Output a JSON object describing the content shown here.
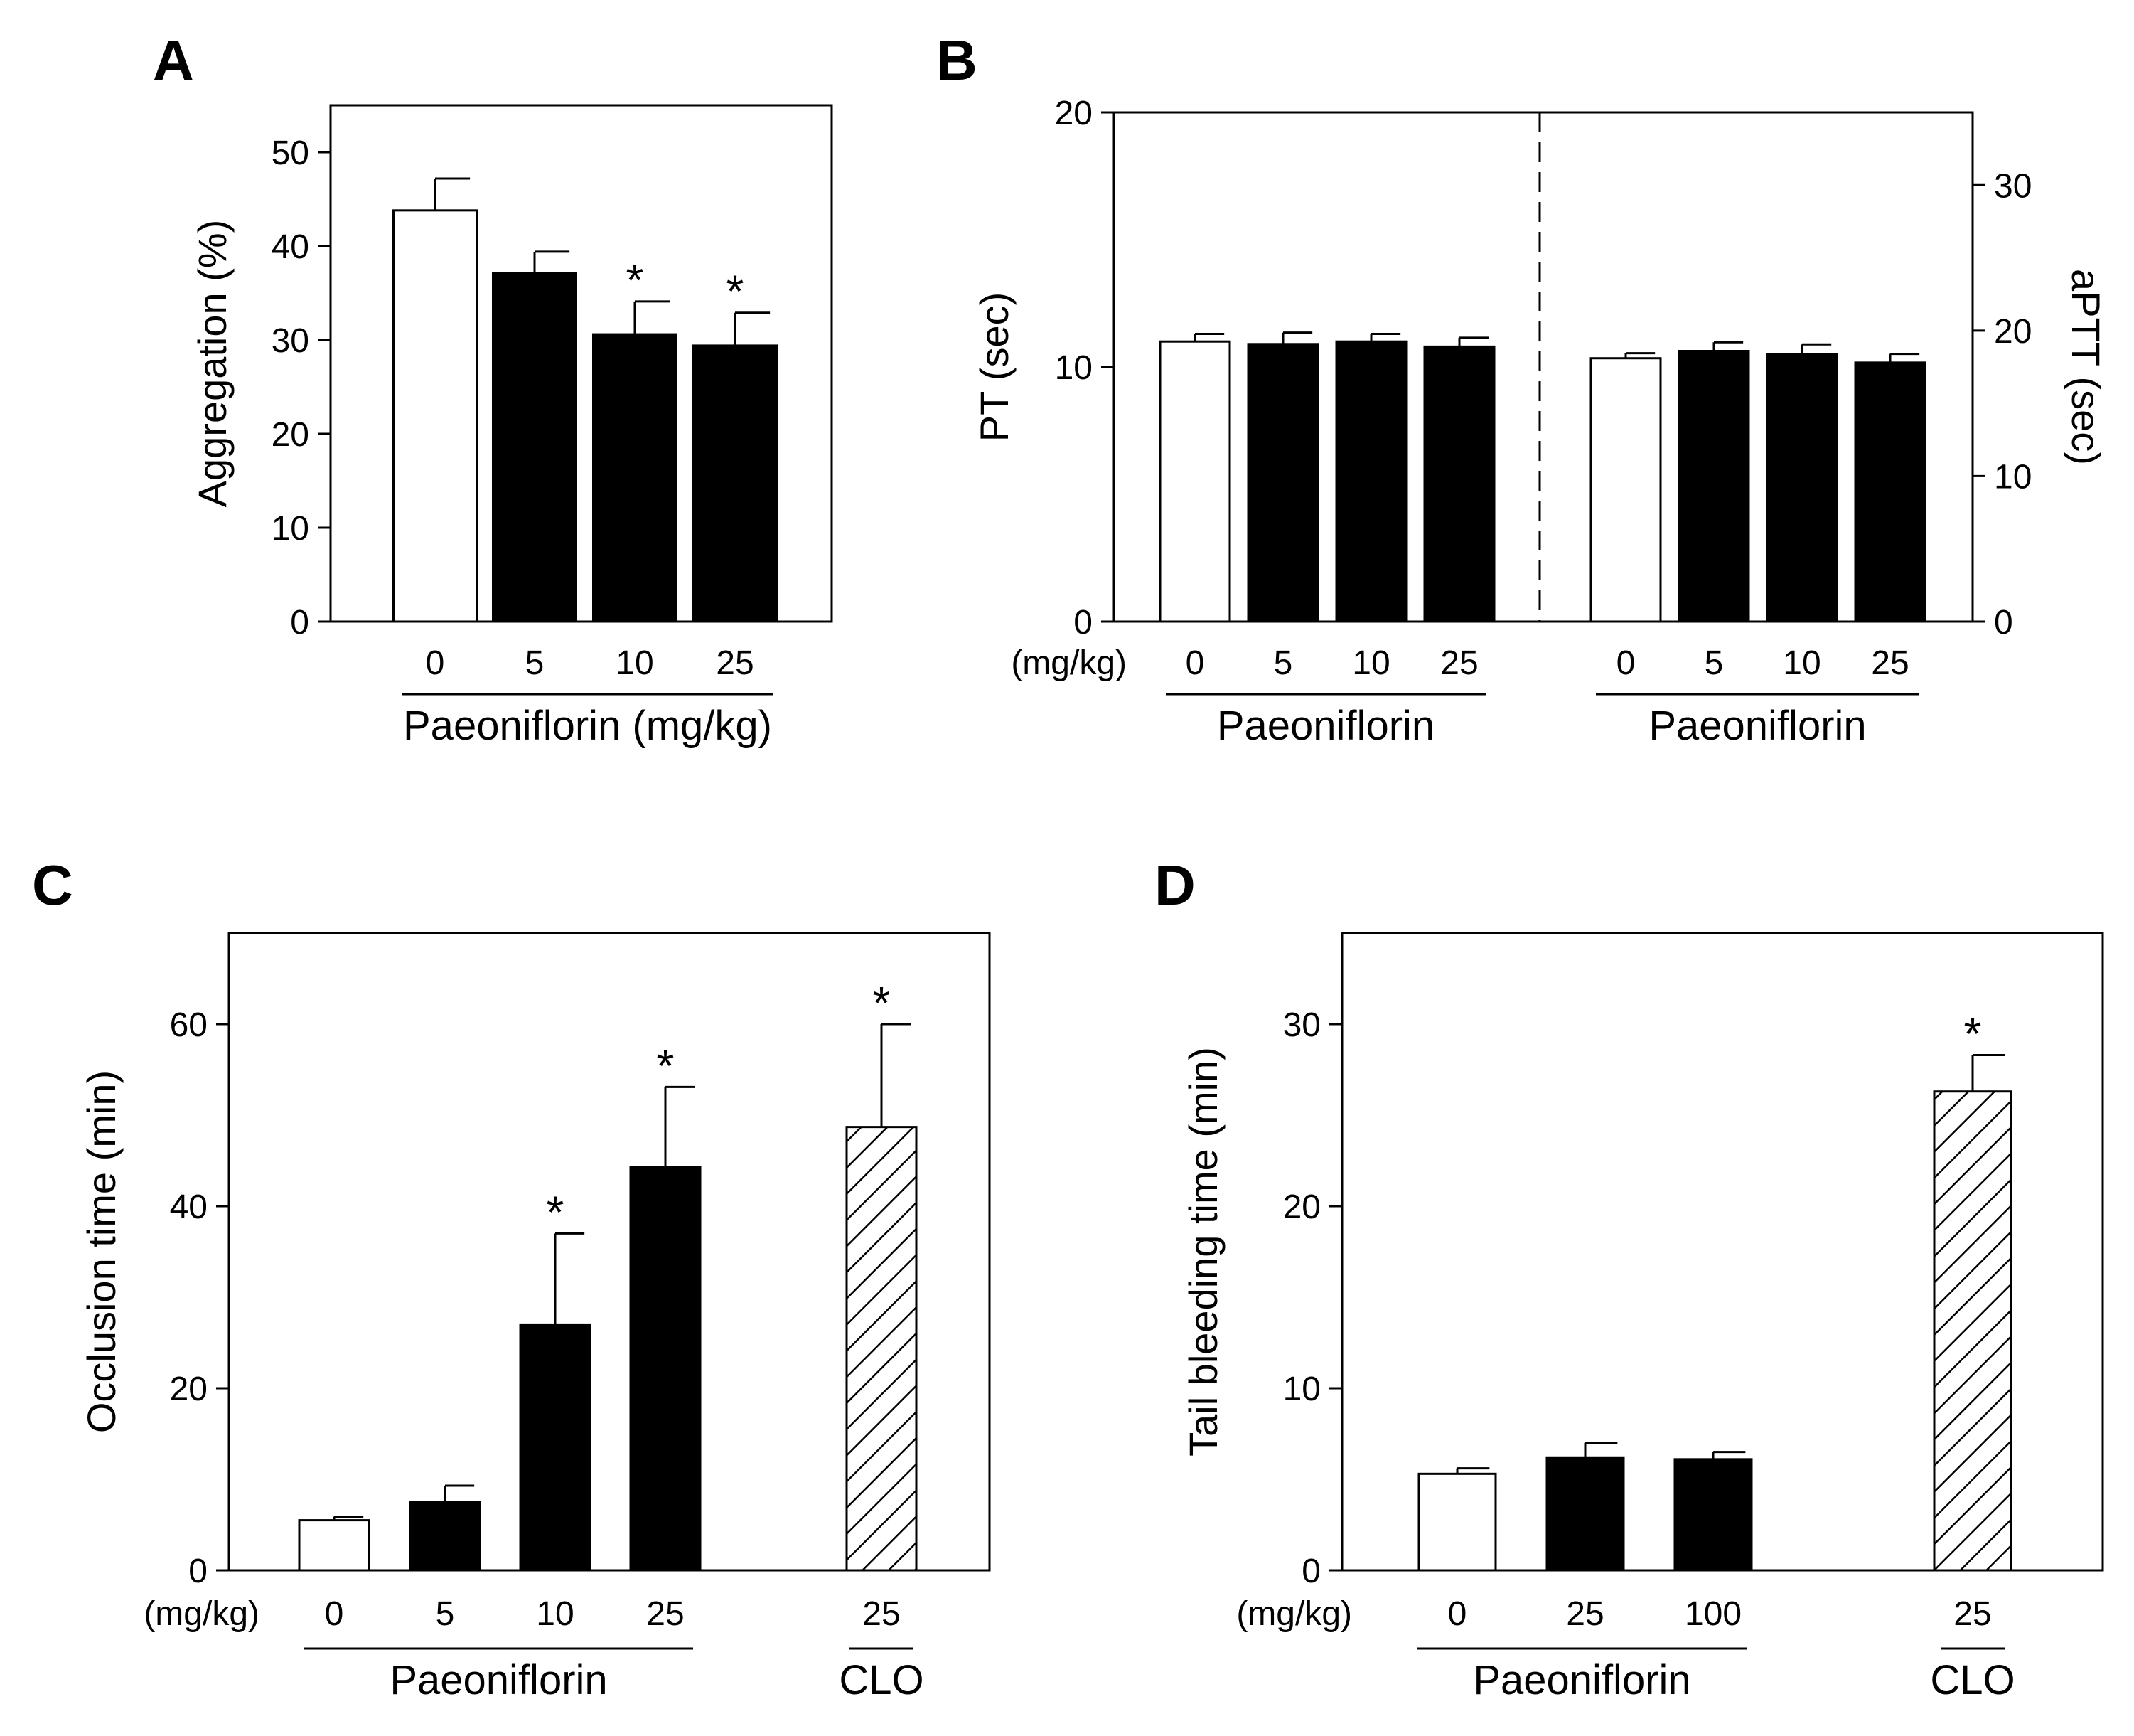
{
  "colors": {
    "axis": "#000000",
    "control": "#ffffff",
    "treated": "#000000",
    "hatch": "#000000"
  },
  "chart_data": [
    {
      "panel": "A",
      "type": "bar",
      "ylabel": "Aggregation (%)",
      "ylim": [
        0,
        55
      ],
      "yticks": [
        "0",
        "10",
        "20",
        "30",
        "40",
        "50"
      ],
      "categories": [
        "0",
        "5",
        "10",
        "25"
      ],
      "values": [
        43.8,
        37.1,
        30.6,
        29.4
      ],
      "errors": [
        3.4,
        2.3,
        3.5,
        3.5
      ],
      "fills": [
        "white",
        "black",
        "black",
        "black"
      ],
      "significant": [
        "",
        "",
        "*",
        "*"
      ],
      "group_label": "Paeoniflorin (mg/kg)"
    },
    {
      "panel": "B",
      "type": "bar",
      "unit_label": "(mg/kg)",
      "series": [
        {
          "name": "PT",
          "ylabel": "PT (sec)",
          "axis": "left",
          "ylim": [
            0,
            20
          ],
          "yticks": [
            "0",
            "10",
            "20"
          ],
          "categories": [
            "0",
            "5",
            "10",
            "25"
          ],
          "values": [
            11.0,
            10.9,
            11.0,
            10.8
          ],
          "errors": [
            0.3,
            0.45,
            0.3,
            0.35
          ],
          "fills": [
            "white",
            "black",
            "black",
            "black"
          ],
          "group_label": "Paeoniflorin"
        },
        {
          "name": "aPTT",
          "ylabel": "aPTT (sec)",
          "axis": "right",
          "ylim": [
            0,
            35
          ],
          "yticks": [
            "0",
            "10",
            "20",
            "30"
          ],
          "categories": [
            "0",
            "5",
            "10",
            "25"
          ],
          "values": [
            18.1,
            18.6,
            18.4,
            17.8
          ],
          "errors": [
            0.35,
            0.6,
            0.65,
            0.6
          ],
          "fills": [
            "white",
            "black",
            "black",
            "black"
          ],
          "group_label": "Paeoniflorin"
        }
      ]
    },
    {
      "panel": "C",
      "type": "bar",
      "ylabel": "Occlusion time (min)",
      "ylim": [
        0,
        70
      ],
      "yticks": [
        "0",
        "20",
        "40",
        "60"
      ],
      "unit_label": "(mg/kg)",
      "categories": [
        "0",
        "5",
        "10",
        "25",
        "25"
      ],
      "values": [
        5.5,
        7.5,
        27.0,
        44.3,
        48.7
      ],
      "errors": [
        0.4,
        1.8,
        10.0,
        8.8,
        11.3
      ],
      "fills": [
        "white",
        "black",
        "black",
        "black",
        "hatch"
      ],
      "significant": [
        "",
        "",
        "*",
        "*",
        "*"
      ],
      "group_labels": [
        "Paeoniflorin",
        "CLO"
      ]
    },
    {
      "panel": "D",
      "type": "bar",
      "ylabel": "Tail bleeding time (min)",
      "ylim": [
        0,
        35
      ],
      "yticks": [
        "0",
        "10",
        "20",
        "30"
      ],
      "unit_label": "(mg/kg)",
      "categories": [
        "0",
        "25",
        "100",
        "25"
      ],
      "values": [
        5.3,
        6.2,
        6.1,
        26.3
      ],
      "errors": [
        0.3,
        0.8,
        0.4,
        2.0
      ],
      "fills": [
        "white",
        "black",
        "black",
        "hatch"
      ],
      "significant": [
        "",
        "",
        "",
        "*"
      ],
      "group_labels": [
        "Paeoniflorin",
        "CLO"
      ]
    }
  ]
}
